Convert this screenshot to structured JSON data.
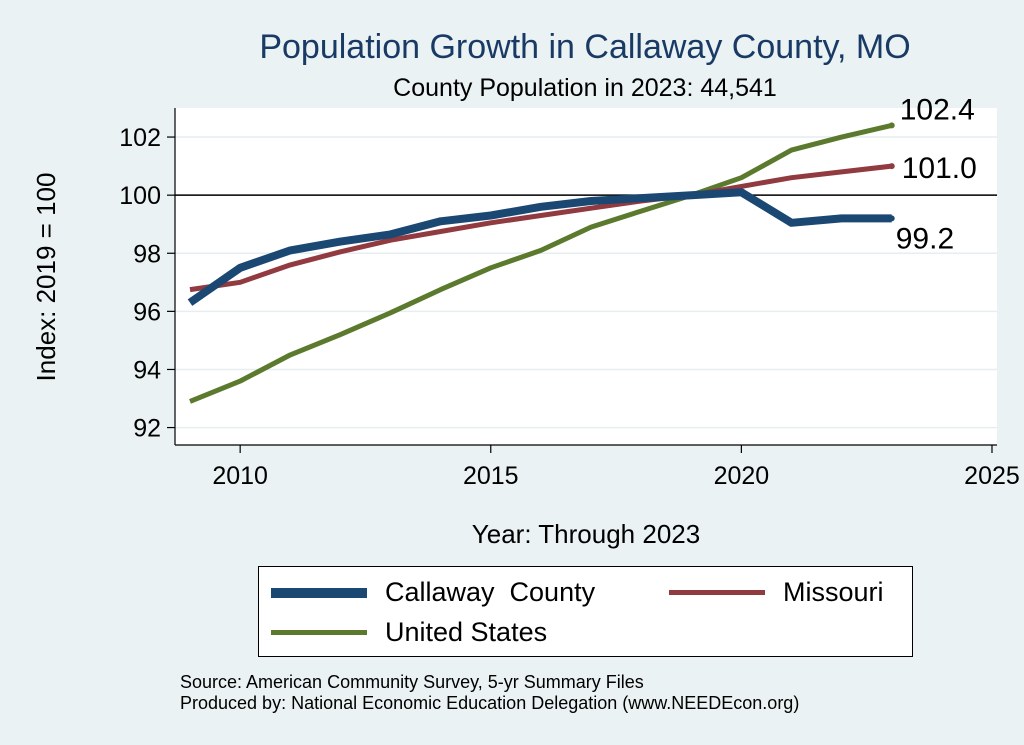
{
  "chart_data": {
    "type": "line",
    "title": "Population Growth in Callaway County, MO",
    "subtitle": "County Population in 2023: 44,541",
    "xlabel": "Year: Through 2023",
    "ylabel": "Index: 2019 = 100",
    "xlim": [
      2008.7,
      2025.1
    ],
    "ylim": [
      91.4,
      103.0
    ],
    "x_ticks": [
      2010,
      2015,
      2020,
      2025
    ],
    "y_ticks": [
      92,
      94,
      96,
      98,
      100,
      102
    ],
    "reference_line": 100,
    "x": [
      2009,
      2010,
      2011,
      2012,
      2013,
      2014,
      2015,
      2016,
      2017,
      2018,
      2019,
      2020,
      2021,
      2022,
      2023
    ],
    "series": [
      {
        "name": "Callaway  County",
        "color": "#1a4873",
        "width": 8,
        "values": [
          96.3,
          97.5,
          98.1,
          98.4,
          98.65,
          99.1,
          99.3,
          99.6,
          99.8,
          99.9,
          100.0,
          100.1,
          99.05,
          99.2,
          99.2
        ],
        "end_label": "99.2"
      },
      {
        "name": "Missouri",
        "color": "#913a40",
        "width": 5,
        "values": [
          96.75,
          97.0,
          97.6,
          98.05,
          98.45,
          98.75,
          99.05,
          99.3,
          99.55,
          99.8,
          100.0,
          100.3,
          100.6,
          100.8,
          101.0
        ],
        "end_label": "101.0"
      },
      {
        "name": "United States",
        "color": "#5b7a2e",
        "width": 5,
        "values": [
          92.9,
          93.6,
          94.5,
          95.2,
          95.95,
          96.75,
          97.5,
          98.1,
          98.9,
          99.45,
          100.0,
          100.6,
          101.55,
          102.0,
          102.4
        ],
        "end_label": "102.4"
      }
    ],
    "legend_position": "bottom"
  },
  "source": {
    "line1": "Source: American Community Survey, 5-yr Summary Files",
    "line2": "Produced by: National Economic Education Delegation (www.NEEDEcon.org)"
  }
}
